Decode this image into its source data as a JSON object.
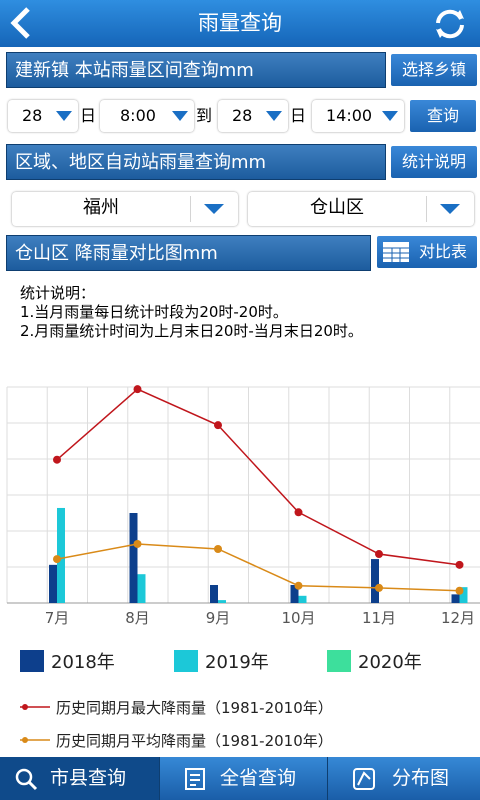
{
  "header": {
    "title": "雨量查询"
  },
  "station": {
    "title": "建新镇  本站雨量区间查询mm",
    "button": "选择乡镇"
  },
  "query": {
    "day_from": "28",
    "day_unit_from": "日",
    "time_from": "8:00",
    "to": "到",
    "day_to": "28",
    "day_unit_to": "日",
    "time_to": "14:00",
    "button": "查询"
  },
  "region": {
    "title": "区域、地区自动站雨量查询mm",
    "button": "统计说明",
    "city": "福州",
    "district": "仓山区"
  },
  "chart_section": {
    "title": "仓山区 降雨量对比图mm",
    "button": "对比表",
    "notes": [
      "统计说明：",
      "1.当月雨量每日统计时段为20时-20时。",
      "2.月雨量统计时间为上月末日20时-当月末日20时。"
    ]
  },
  "chart_data": {
    "type": "bar",
    "categories": [
      "7月",
      "8月",
      "9月",
      "10月",
      "11月",
      "12月"
    ],
    "series": [
      {
        "name": "2018年",
        "color": "#0d3f8c",
        "values": [
          53,
          125,
          25,
          25,
          61,
          12
        ]
      },
      {
        "name": "2019年",
        "color": "#1cc8d8",
        "values": [
          132,
          40,
          4,
          10,
          null,
          22
        ]
      },
      {
        "name": "2020年",
        "color": "#3ddf9c",
        "values": [
          null,
          null,
          null,
          null,
          null,
          null
        ]
      }
    ],
    "lines": [
      {
        "name": "历史同期月最大降雨量（1981-2010年）",
        "color": "#c0161c",
        "values": [
          199,
          297,
          247,
          126,
          68,
          53
        ]
      },
      {
        "name": "历史同期月平均降雨量（1981-2010年）",
        "color": "#d98a18",
        "values": [
          61,
          82,
          75,
          24,
          21,
          17
        ]
      }
    ],
    "ylim": [
      0,
      300
    ],
    "yticks": [
      0,
      50,
      100,
      150,
      200,
      250,
      300
    ],
    "grid": true,
    "tick_labels": false
  },
  "tabs": [
    "市县查询",
    "全省查询",
    "分布图"
  ]
}
